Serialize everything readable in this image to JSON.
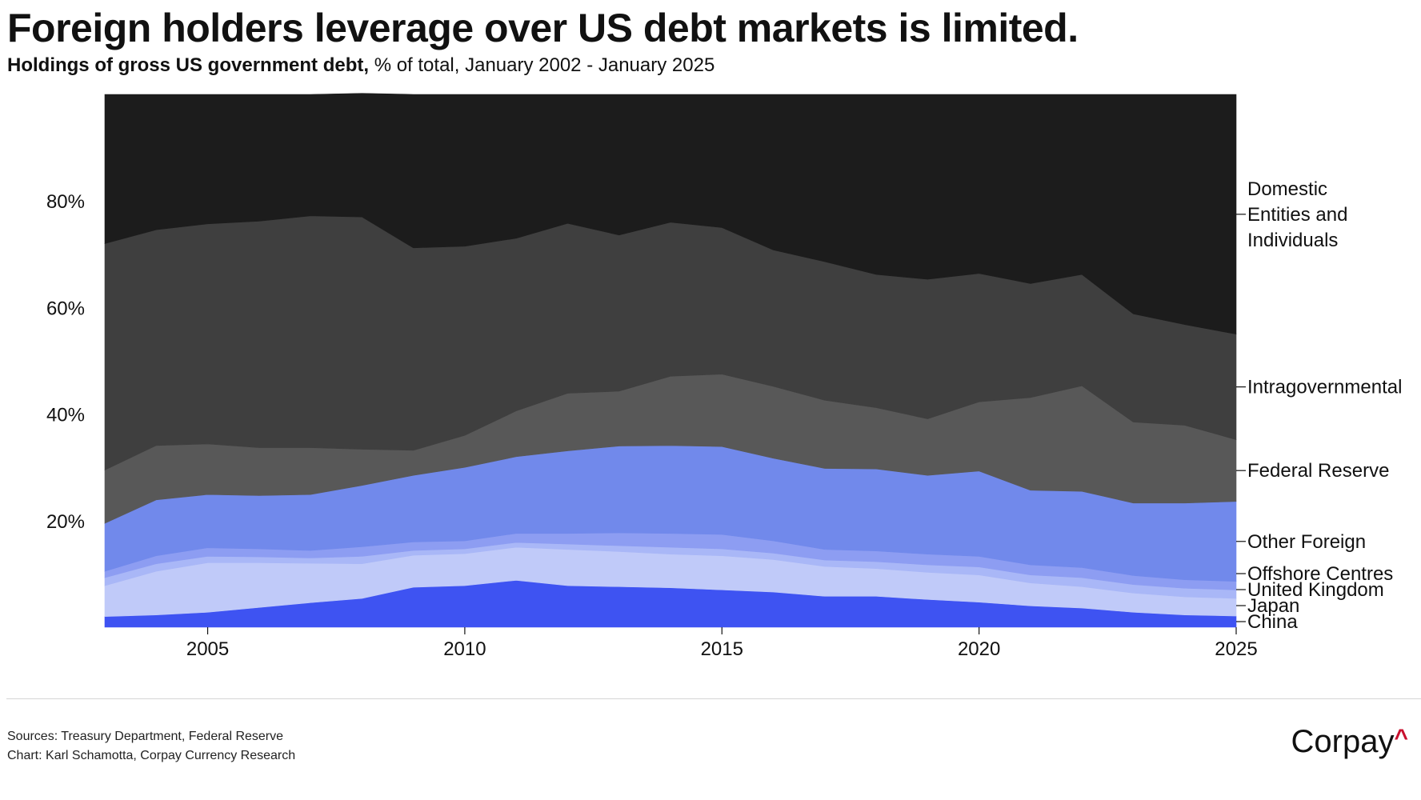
{
  "header": {
    "title": "Foreign holders leverage over US debt markets is limited.",
    "subtitle_bold": "Holdings of gross US government debt,",
    "subtitle_rest": " % of total, January 2002 - January 2025"
  },
  "footer": {
    "sources": "Sources: Treasury Department, Federal Reserve",
    "chart_credit": "Chart: Karl Schamotta, Corpay Currency Research",
    "logo_text": "Corpay",
    "logo_mark": "^"
  },
  "colors": {
    "China": "#3e53f2",
    "Japan": "#c0caf9",
    "United Kingdom": "#a9b7f7",
    "Offshore Centres": "#8d9df2",
    "Other Foreign": "#7189eb",
    "Federal Reserve": "#585858",
    "Intragovernmental": "#3f3f3f",
    "Domestic Entities and Individuals": "#1c1c1c",
    "logo_accent": "#c8102e"
  },
  "chart_data": {
    "type": "area",
    "stacked": true,
    "x": [
      2003.0,
      2004.0,
      2005.0,
      2006.0,
      2007.0,
      2008.0,
      2009.0,
      2010.0,
      2011.0,
      2012.0,
      2013.0,
      2014.0,
      2015.0,
      2016.0,
      2017.0,
      2018.0,
      2019.0,
      2020.0,
      2021.0,
      2022.0,
      2023.0,
      2024.0,
      2025.0
    ],
    "x_ticks": [
      2005,
      2010,
      2015,
      2020,
      2025
    ],
    "x_tick_labels": [
      "2005",
      "2010",
      "2015",
      "2020",
      "2025"
    ],
    "xlim": [
      2003.0,
      2025.0
    ],
    "y_ticks": [
      20,
      40,
      60,
      80
    ],
    "y_tick_labels": [
      "20%",
      "40%",
      "60%",
      "80%"
    ],
    "ylim": [
      0,
      100
    ],
    "series": [
      {
        "name": "China",
        "values": [
          2.0,
          2.3,
          2.8,
          3.7,
          4.6,
          5.4,
          7.5,
          7.8,
          8.8,
          7.8,
          7.6,
          7.4,
          7.0,
          6.6,
          5.8,
          5.8,
          5.2,
          4.7,
          4.0,
          3.6,
          2.8,
          2.3,
          2.1
        ]
      },
      {
        "name": "Japan",
        "values": [
          5.8,
          8.2,
          9.3,
          8.4,
          7.4,
          6.5,
          6.0,
          6.0,
          6.2,
          6.8,
          6.6,
          6.3,
          6.4,
          6.1,
          5.6,
          5.2,
          5.1,
          5.1,
          4.3,
          4.0,
          3.6,
          3.4,
          3.3
        ]
      },
      {
        "name": "United Kingdom",
        "values": [
          1.5,
          1.4,
          1.2,
          1.1,
          1.0,
          1.4,
          0.9,
          0.9,
          0.9,
          1.0,
          1.1,
          1.3,
          1.3,
          1.2,
          1.2,
          1.3,
          1.4,
          1.5,
          1.5,
          1.7,
          1.6,
          1.6,
          1.6
        ]
      },
      {
        "name": "Offshore Centres",
        "values": [
          1.2,
          1.5,
          1.6,
          1.5,
          1.4,
          1.8,
          1.6,
          1.5,
          1.7,
          2.0,
          2.4,
          2.6,
          2.7,
          2.3,
          2.0,
          2.0,
          2.0,
          2.0,
          1.9,
          1.9,
          1.7,
          1.6,
          1.6
        ]
      },
      {
        "name": "Other Foreign",
        "values": [
          9.0,
          10.5,
          10.0,
          10.0,
          10.5,
          11.5,
          12.5,
          13.8,
          14.4,
          15.5,
          16.3,
          16.5,
          16.5,
          15.5,
          15.2,
          15.4,
          14.8,
          16.0,
          14.0,
          14.3,
          13.6,
          14.4,
          15.0
        ]
      },
      {
        "name": "Federal Reserve",
        "values": [
          10.0,
          10.2,
          9.5,
          9.0,
          8.8,
          6.8,
          4.7,
          6.0,
          8.6,
          10.8,
          10.3,
          13.0,
          13.6,
          13.5,
          12.8,
          11.5,
          10.6,
          13.0,
          17.4,
          19.8,
          15.2,
          14.6,
          11.6
        ]
      },
      {
        "name": "Intragovernmental",
        "values": [
          42.5,
          40.5,
          41.3,
          42.5,
          43.5,
          43.6,
          38.0,
          35.5,
          32.4,
          31.9,
          29.3,
          28.9,
          27.5,
          25.6,
          26.0,
          25.0,
          26.2,
          24.1,
          21.4,
          20.9,
          20.3,
          18.9,
          19.8
        ]
      },
      {
        "name": "Domestic Entities and Individuals",
        "values": [
          28.0,
          25.4,
          24.3,
          23.8,
          22.8,
          23.2,
          28.8,
          28.5,
          27.0,
          24.2,
          26.4,
          24.0,
          25.0,
          29.2,
          31.4,
          33.8,
          34.7,
          33.6,
          35.5,
          33.8,
          41.2,
          43.2,
          45.0
        ]
      }
    ],
    "legend": "right, direct labels",
    "grid": false
  }
}
